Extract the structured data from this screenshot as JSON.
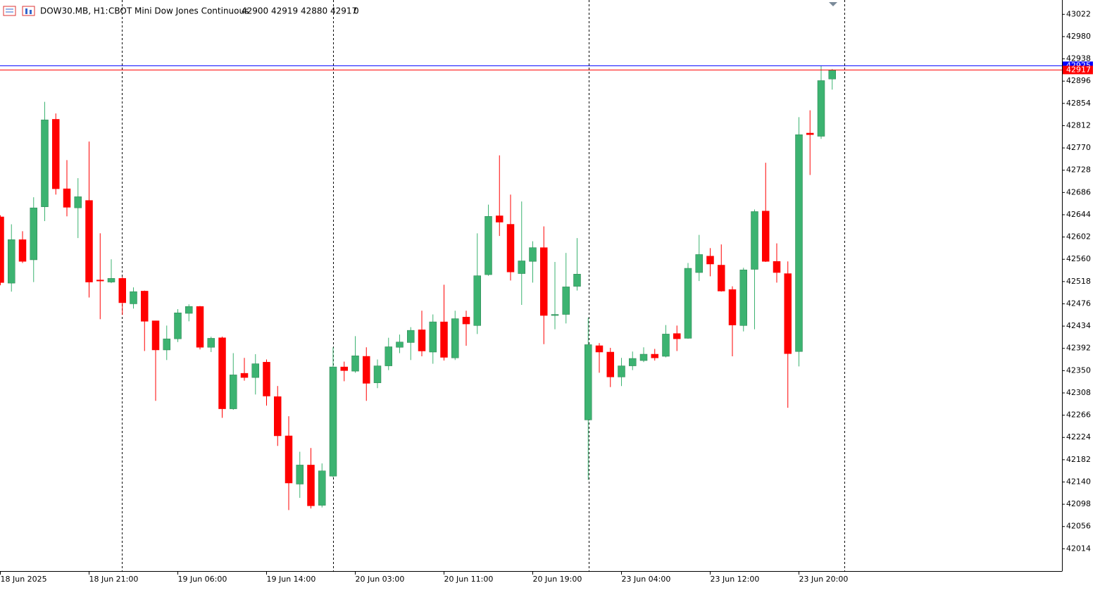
{
  "header": {
    "symbol": "DOW30.MB, H1:",
    "description": "CBOT Mini Dow Jones Continuous",
    "quote": "42900 42919 42880 42917",
    "spread": "0"
  },
  "chart_data": {
    "type": "candlestick",
    "categories": [
      "18 Jun 2025",
      null,
      null,
      null,
      null,
      null,
      null,
      null,
      "18 Jun 21:00",
      null,
      null,
      null,
      null,
      null,
      null,
      null,
      "19 Jun 06:00",
      null,
      null,
      null,
      null,
      null,
      null,
      null,
      "19 Jun 14:00",
      null,
      null,
      null,
      null,
      null,
      null,
      null,
      "20 Jun 03:00",
      null,
      null,
      null,
      null,
      null,
      null,
      null,
      "20 Jun 11:00",
      null,
      null,
      null,
      null,
      null,
      null,
      null,
      "20 Jun 19:00",
      null,
      null,
      null,
      null,
      null,
      null,
      null,
      "23 Jun 04:00",
      null,
      null,
      null,
      null,
      null,
      null,
      null,
      "23 Jun 12:00",
      null,
      null,
      null,
      null,
      null,
      null,
      null,
      "23 Jun 20:00",
      null,
      null,
      null
    ],
    "open": [
      42640,
      42515,
      42597,
      42559,
      42659,
      42824,
      42693,
      42657,
      42671,
      42521,
      42517,
      42524,
      42476,
      42500,
      42444,
      42389,
      42410,
      42458,
      42471,
      42394,
      42412,
      42278,
      42345,
      42337,
      42366,
      42301,
      42227,
      42136,
      42172,
      42096,
      42151,
      42357,
      42349,
      42377,
      42327,
      42359,
      42394,
      42403,
      42427,
      42385,
      42442,
      42374,
      42451,
      42435,
      42531,
      42642,
      42626,
      42533,
      42556,
      42582,
      42454,
      42456,
      42509,
      42257,
      42397,
      42385,
      42338,
      42359,
      42369,
      42381,
      42377,
      42420,
      42411,
      42535,
      42566,
      42549,
      42503,
      42435,
      42541,
      42651,
      42556,
      42533,
      42386,
      42798,
      42792,
      42900
    ],
    "high": [
      42643,
      42626,
      42613,
      42677,
      42857,
      42835,
      42747,
      42713,
      42782,
      42609,
      42560,
      42527,
      42507,
      42501,
      42444,
      42435,
      42466,
      42475,
      42472,
      42414,
      42414,
      42383,
      42374,
      42381,
      42371,
      42321,
      42264,
      42197,
      42204,
      42175,
      42394,
      42367,
      42415,
      42394,
      42371,
      42412,
      42418,
      42432,
      42463,
      42456,
      42512,
      42463,
      42463,
      42609,
      42663,
      42756,
      42682,
      42669,
      42594,
      42622,
      42555,
      42572,
      42600,
      42450,
      42402,
      42393,
      42374,
      42386,
      42394,
      42391,
      42436,
      42435,
      42553,
      42606,
      42581,
      42588,
      42509,
      42544,
      42654,
      42742,
      42590,
      42556,
      42828,
      42841,
      42925,
      42919
    ],
    "low": [
      42511,
      42499,
      42553,
      42517,
      42632,
      42682,
      42641,
      42600,
      42488,
      42447,
      42515,
      42455,
      42467,
      42387,
      42293,
      42370,
      42404,
      42443,
      42390,
      42385,
      42261,
      42276,
      42331,
      42305,
      42284,
      42208,
      42087,
      42110,
      42090,
      42092,
      42149,
      42330,
      42346,
      42293,
      42317,
      42351,
      42383,
      42370,
      42377,
      42363,
      42369,
      42370,
      42397,
      42419,
      42529,
      42604,
      42520,
      42474,
      42516,
      42400,
      42428,
      42439,
      42501,
      42144,
      42346,
      42319,
      42321,
      42351,
      42366,
      42369,
      42375,
      42387,
      42410,
      42519,
      42528,
      42499,
      42377,
      42424,
      42428,
      42555,
      42516,
      42280,
      42358,
      42719,
      42787,
      42880
    ],
    "close": [
      42516,
      42597,
      42556,
      42657,
      42823,
      42693,
      42658,
      42678,
      42517,
      42520,
      42524,
      42478,
      42499,
      42443,
      42389,
      42410,
      42459,
      42471,
      42394,
      42411,
      42278,
      42342,
      42337,
      42363,
      42302,
      42227,
      42138,
      42172,
      42095,
      42161,
      42357,
      42350,
      42378,
      42326,
      42359,
      42395,
      42404,
      42426,
      42387,
      42442,
      42375,
      42448,
      42438,
      42529,
      42641,
      42630,
      42536,
      42557,
      42582,
      42454,
      42456,
      42508,
      42532,
      42399,
      42385,
      42338,
      42359,
      42373,
      42381,
      42374,
      42419,
      42410,
      42543,
      42569,
      42551,
      42500,
      42436,
      42540,
      42650,
      42556,
      42535,
      42382,
      42795,
      42795,
      42897,
      42917
    ],
    "up_color": "#3cb371",
    "down_color": "#ff0000",
    "ylim": [
      41972,
      43049
    ],
    "yticks": [
      43022,
      42980,
      42938,
      42896,
      42854,
      42812,
      42770,
      42728,
      42686,
      42644,
      42602,
      42560,
      42518,
      42476,
      42434,
      42392,
      42350,
      42308,
      42266,
      42224,
      42182,
      42140,
      42098,
      42056,
      42014
    ],
    "price_lines": [
      {
        "value": 42925,
        "color": "#0000ff"
      },
      {
        "value": 42917,
        "color": "#ff0000"
      }
    ]
  }
}
